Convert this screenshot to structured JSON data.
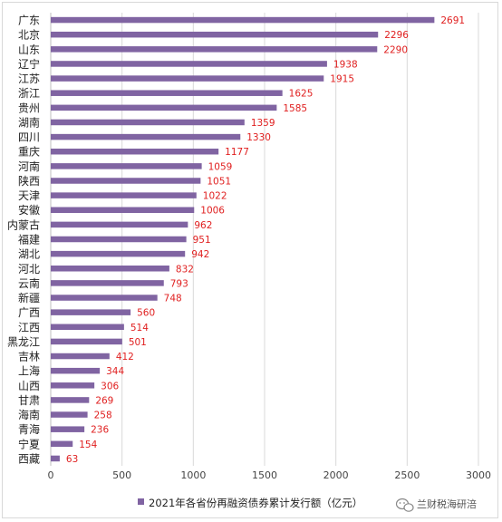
{
  "chart_data": {
    "type": "bar",
    "orientation": "horizontal",
    "categories": [
      "广东",
      "北京",
      "山东",
      "辽宁",
      "江苏",
      "浙江",
      "贵州",
      "湖南",
      "四川",
      "重庆",
      "河南",
      "陕西",
      "天津",
      "安徽",
      "内蒙古",
      "福建",
      "湖北",
      "河北",
      "云南",
      "新疆",
      "广西",
      "江西",
      "黑龙江",
      "吉林",
      "上海",
      "山西",
      "甘肃",
      "海南",
      "青海",
      "宁夏",
      "西藏"
    ],
    "series": [
      {
        "name": "2021年各省份再融资债券累计发行额（亿元）",
        "values": [
          2691,
          2296,
          2290,
          1938,
          1915,
          1625,
          1585,
          1359,
          1330,
          1177,
          1059,
          1051,
          1022,
          1006,
          962,
          951,
          942,
          832,
          793,
          748,
          560,
          514,
          501,
          412,
          344,
          306,
          269,
          258,
          236,
          154,
          63
        ],
        "value_labels": [
          "2691",
          "2296",
          "2290",
          "1938",
          "1915",
          "1625",
          "1585",
          "1359",
          "1330",
          "1177",
          "1059",
          "1051",
          "1022",
          "1006",
          "962",
          "951",
          "942",
          "832",
          "793",
          "748",
          "560",
          "514",
          "501",
          "412",
          "344",
          "306",
          "269",
          "258",
          "236",
          "154",
          "63"
        ]
      }
    ],
    "xlim": [
      0,
      3000
    ],
    "xticks": [
      0,
      500,
      1000,
      1500,
      2000,
      2500,
      3000
    ],
    "xtick_labels": [
      "0",
      "500",
      "1000",
      "1500",
      "2000",
      "2500",
      "3000"
    ],
    "grid": "vertical",
    "legend": "bottom",
    "colors": {
      "bar": "#8064a2",
      "data_label": "#e02020",
      "grid": "#d9d9d9"
    }
  },
  "watermark": {
    "text": "兰财税海研涪",
    "icon": "wechat-icon"
  }
}
